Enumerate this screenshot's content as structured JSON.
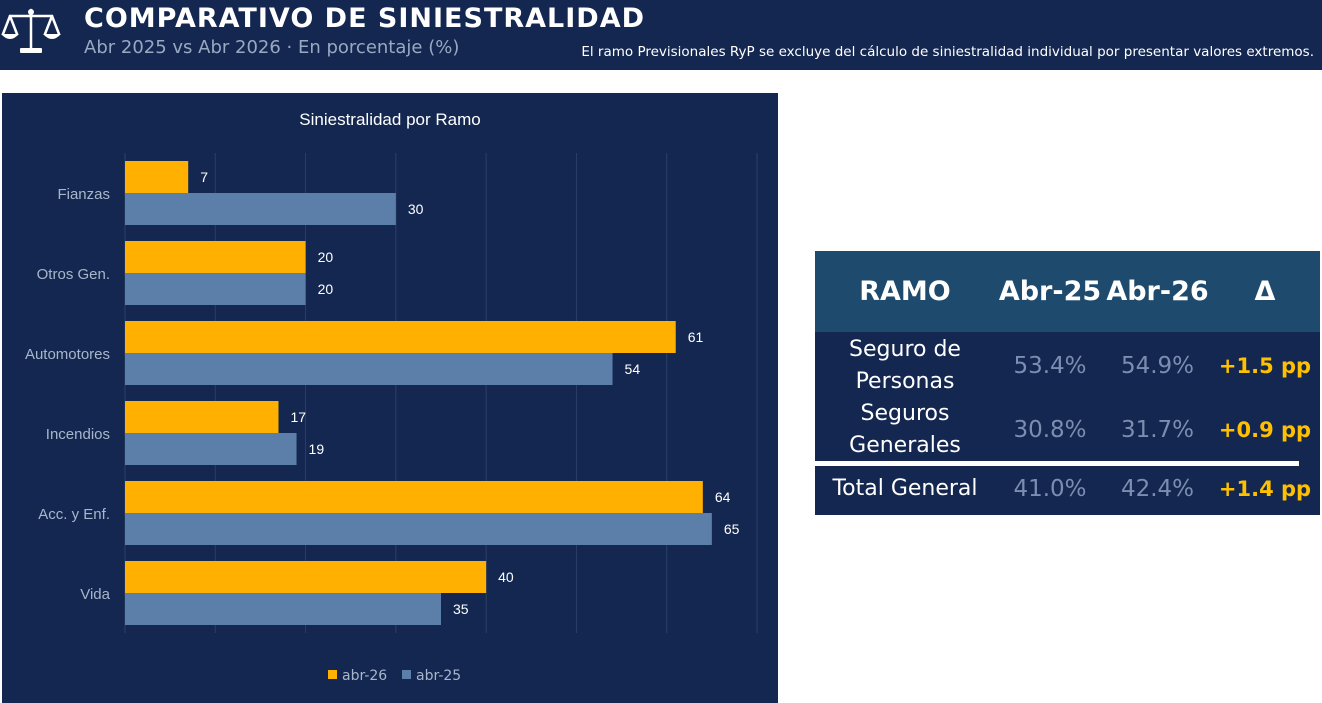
{
  "header": {
    "title": "COMPARATIVO DE SINIESTRALIDAD",
    "subtitle": "Abr 2025 vs Abr 2026 · En porcentaje (%)",
    "note": "El ramo Previsionales RyP se excluye del cálculo de siniestralidad individual por presentar valores extremos.",
    "logo_icon": "scale-icon"
  },
  "colors": {
    "background": "#142750",
    "abr26": "#ffb000",
    "abr25": "#5b7fa8",
    "table_header": "#1e4a6e",
    "delta": "#ffc000"
  },
  "chart_data": {
    "type": "bar",
    "orientation": "horizontal",
    "title": "Siniestralidad por Ramo",
    "categories": [
      "Fianzas",
      "Otros Gen.",
      "Automotores",
      "Incendios",
      "Acc. y Enf.",
      "Vida"
    ],
    "series": [
      {
        "name": "abr-26",
        "values": [
          7,
          20,
          61,
          17,
          64,
          40
        ]
      },
      {
        "name": "abr-25",
        "values": [
          30,
          20,
          54,
          19,
          65,
          35
        ]
      }
    ],
    "xlim": [
      0,
      70
    ],
    "grid": true,
    "legend": "bottom"
  },
  "table": {
    "headers": [
      "RAMO",
      "Abr-25",
      "Abr-26",
      "Δ"
    ],
    "rows": [
      {
        "name": "Seguro de Personas",
        "abr25": "53.4%",
        "abr26": "54.9%",
        "delta": "+1.5 pp"
      },
      {
        "name": "Seguros Generales",
        "abr25": "30.8%",
        "abr26": "31.7%",
        "delta": "+0.9 pp"
      }
    ],
    "total": {
      "name": "Total General",
      "abr25": "41.0%",
      "abr26": "42.4%",
      "delta": "+1.4 pp"
    }
  }
}
